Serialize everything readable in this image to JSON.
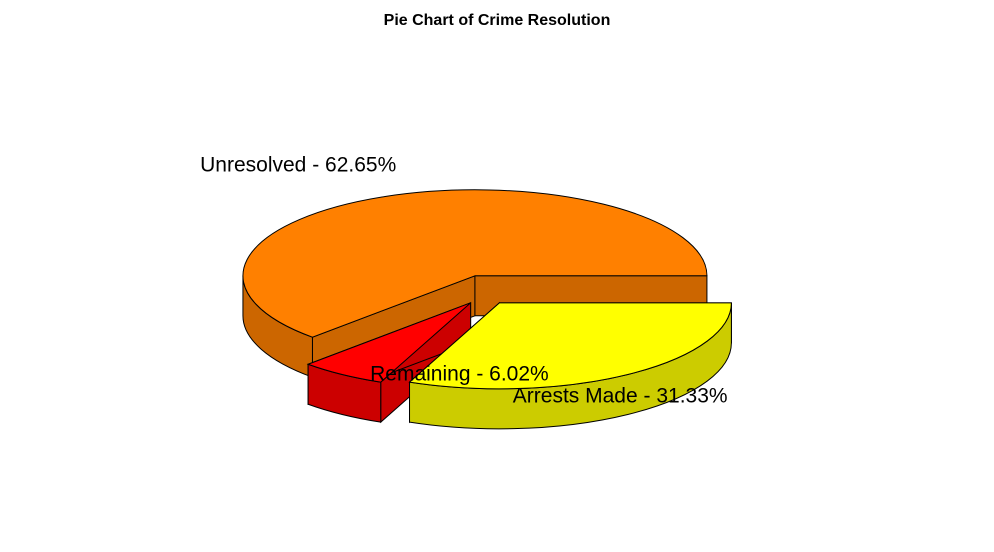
{
  "chart_data": {
    "type": "pie",
    "title": "Pie Chart of Crime Resolution",
    "three_d": true,
    "exploded": true,
    "slices": [
      {
        "label": "Arrests Made - 31.33%",
        "value": 31.33,
        "color": "#ffff00",
        "side_color": "#cccc00"
      },
      {
        "label": "Remaining - 6.02%",
        "value": 6.02,
        "color": "#ff0000",
        "side_color": "#cc0000"
      },
      {
        "label": "Unresolved - 62.65%",
        "value": 62.65,
        "color": "#ff8000",
        "side_color": "#cc6600"
      }
    ]
  }
}
